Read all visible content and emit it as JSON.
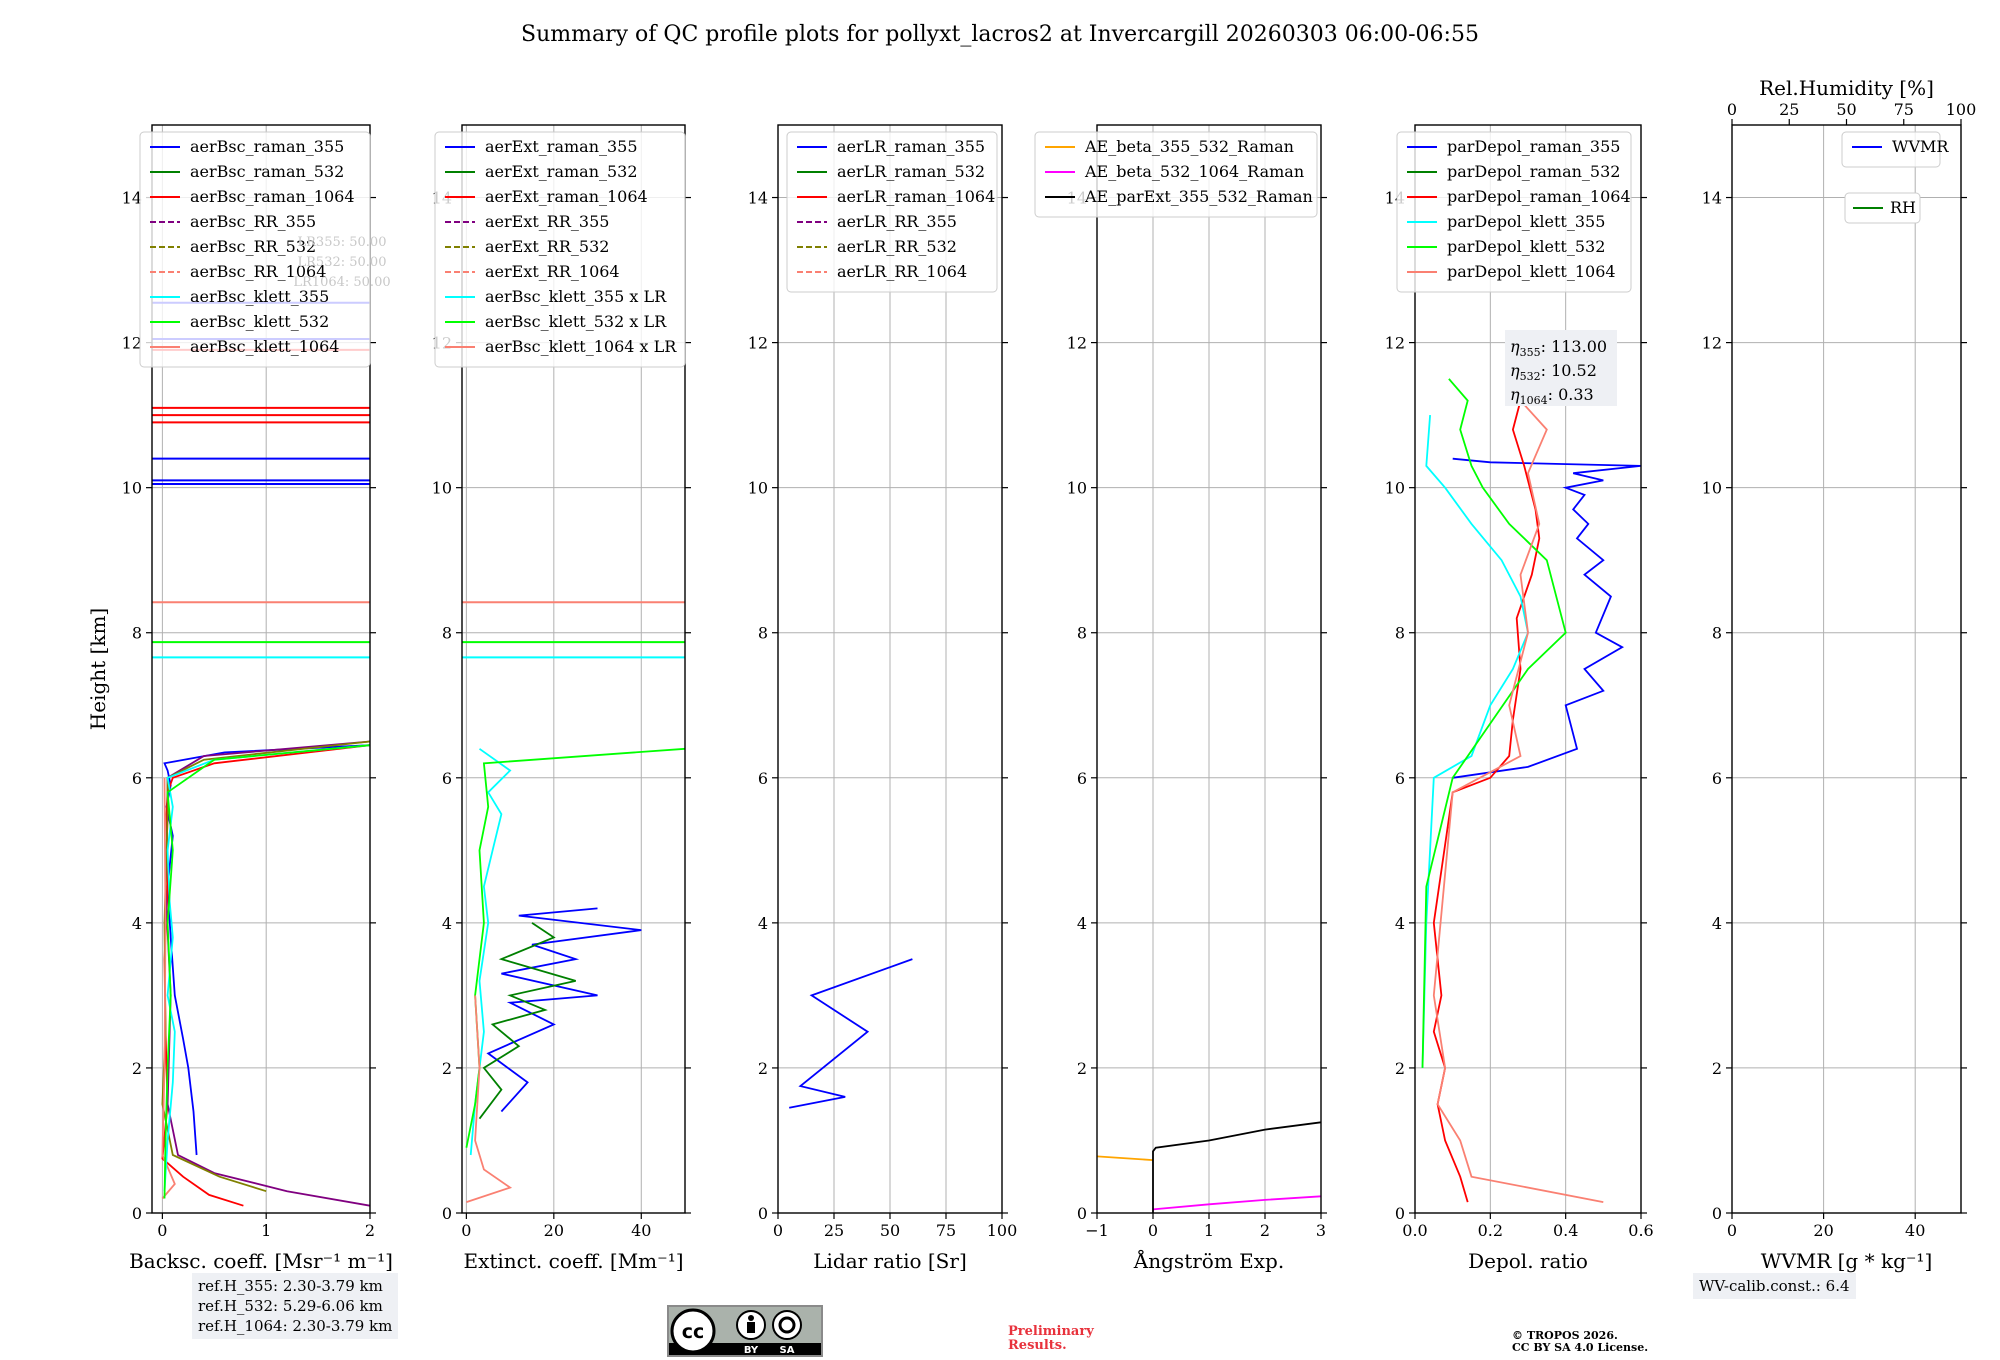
{
  "title": "Summary of QC profile plots for pollyxt_lacros2 at Invercargill 20260303 06:00-06:55",
  "ylabel": "Height [km]",
  "ref_heights": [
    "ref.H_355: 2.30-3.79 km",
    "ref.H_532: 5.29-6.06 km",
    "ref.H_1064: 2.30-3.79 km"
  ],
  "wv_calib": "WV-calib.const.: 6.4",
  "cc_license": {
    "cc": "cc",
    "by": "BY",
    "sa": "SA"
  },
  "preliminary": [
    "Preliminary",
    "Results."
  ],
  "copyright": [
    "© TROPOS 2026.",
    "CC BY SA 4.0 License."
  ],
  "colors": {
    "raman_355": "#0000ff",
    "raman_532": "#008000",
    "raman_1064": "#ff0000",
    "rr_355": "#800080",
    "rr_532": "#808000",
    "rr_1064": "#fa8072",
    "klett_355": "#00ffff",
    "klett_532": "#00ff00",
    "klett_1064": "#fa8072",
    "ae_beta_355_532": "#ffa500",
    "ae_beta_532_1064": "#ff00ff",
    "ae_parext": "#000000",
    "rh": "#008000"
  },
  "chart_data": [
    {
      "type": "line",
      "id": "bsc",
      "xlabel": "Backsc. coeff. [Msr⁻¹ m⁻¹]",
      "ylabel": "Height [km]",
      "xlim": [
        -0.1,
        2
      ],
      "ylim": [
        0,
        15
      ],
      "xticks": [
        "0",
        "1",
        "2"
      ],
      "xtick_values": [
        0,
        1,
        2
      ],
      "yticks": [
        "0",
        "2",
        "4",
        "6",
        "8",
        "10",
        "12",
        "14"
      ],
      "legend": [
        "aerBsc_raman_355",
        "aerBsc_raman_532",
        "aerBsc_raman_1064",
        "aerBsc_RR_355",
        "aerBsc_RR_532",
        "aerBsc_RR_1064",
        "aerBsc_klett_355",
        "aerBsc_klett_532",
        "aerBsc_klett_1064"
      ],
      "overlay_text": [
        "LR355: 50.00",
        "LR532: 50.00",
        "LR1064: 50.00"
      ],
      "series": [
        {
          "name": "aerBsc_raman_355",
          "color": "#0000ff",
          "x": [
            0.33,
            0.3,
            0.25,
            0.2,
            0.12,
            0.08,
            0.05,
            0.1,
            0.04,
            0.08,
            0.05,
            0.02,
            0.6,
            2.0
          ],
          "y": [
            0.8,
            1.4,
            2.0,
            2.4,
            3.0,
            3.8,
            4.5,
            5.2,
            5.6,
            5.9,
            6.1,
            6.2,
            6.35,
            6.45
          ]
        },
        {
          "name": "aerBsc_raman_1064",
          "color": "#ff0000",
          "x": [
            0.78,
            0.45,
            0.2,
            0.0,
            0.05,
            0.03,
            0.02,
            0.05,
            0.04,
            0.05,
            0.1,
            0.5,
            2.0
          ],
          "y": [
            0.1,
            0.25,
            0.5,
            0.75,
            1.5,
            2.5,
            3.5,
            4.5,
            5.5,
            5.8,
            6.0,
            6.2,
            6.45
          ]
        },
        {
          "name": "aerBsc_RR_355",
          "color": "#800080",
          "x": [
            2.0,
            1.2,
            0.5,
            0.15,
            0.05,
            0.08,
            0.03,
            0.05,
            0.05,
            0.4,
            2.0
          ],
          "y": [
            0.1,
            0.3,
            0.55,
            0.8,
            1.5,
            3.0,
            4.5,
            5.5,
            6.0,
            6.3,
            6.5
          ]
        },
        {
          "name": "aerBsc_RR_532",
          "color": "#808000",
          "x": [
            1.0,
            0.55,
            0.1,
            0.0,
            0.03,
            0.02,
            0.05,
            0.05,
            0.4,
            2.0
          ],
          "y": [
            0.3,
            0.5,
            0.8,
            1.5,
            2.5,
            4.0,
            5.5,
            6.0,
            6.25,
            6.5
          ]
        },
        {
          "name": "aerBsc_RR_1064",
          "color": "#fa8072",
          "x": [
            0.0,
            0.12,
            0.0,
            0.02,
            0.03,
            0.02
          ],
          "y": [
            0.2,
            0.4,
            0.8,
            2.0,
            4.0,
            6.0
          ]
        },
        {
          "name": "aerBsc_klett_355",
          "color": "#00ffff",
          "x": [
            0.02,
            0.05,
            0.1,
            0.12,
            0.05,
            0.1,
            0.07,
            0.05,
            0.1,
            0.05,
            0.5,
            2.0
          ],
          "y": [
            0.3,
            1.0,
            1.8,
            2.5,
            3.0,
            3.8,
            4.3,
            5.0,
            5.6,
            6.0,
            6.25,
            6.45
          ]
        },
        {
          "name": "aerBsc_klett_532",
          "color": "#00ff00",
          "x": [
            0.02,
            0.03,
            0.05,
            0.08,
            0.05,
            0.1,
            0.05,
            0.5,
            2.0
          ],
          "y": [
            0.2,
            1.0,
            2.0,
            3.0,
            4.0,
            5.0,
            5.8,
            6.25,
            6.45
          ]
        }
      ],
      "hlines": [
        {
          "color": "#fa8072",
          "y": 8.42
        },
        {
          "color": "#00ff00",
          "y": 7.87
        },
        {
          "color": "#00ffff",
          "y": 7.66
        },
        {
          "color": "#0000ff",
          "y": 10.05
        },
        {
          "color": "#0000ff",
          "y": 10.1
        },
        {
          "color": "#ff0000",
          "y": 10.9
        },
        {
          "color": "#ff0000",
          "y": 11.0
        },
        {
          "color": "#ff0000",
          "y": 11.1
        },
        {
          "color": "#0000ff",
          "y": 10.4
        },
        {
          "color": "#0000ff",
          "y": 12.55
        },
        {
          "color": "#0000ff",
          "y": 12.05
        },
        {
          "color": "#ff0000",
          "y": 11.9
        }
      ]
    },
    {
      "type": "line",
      "id": "ext",
      "xlabel": "Extinct. coeff. [Mm⁻¹]",
      "xlim": [
        -1,
        50
      ],
      "ylim": [
        0,
        15
      ],
      "xticks": [
        "0",
        "20",
        "40"
      ],
      "xtick_values": [
        0,
        20,
        40
      ],
      "yticks": [
        "0",
        "2",
        "4",
        "6",
        "8",
        "10",
        "12",
        "14"
      ],
      "legend": [
        "aerExt_raman_355",
        "aerExt_raman_532",
        "aerExt_raman_1064",
        "aerExt_RR_355",
        "aerExt_RR_532",
        "aerExt_RR_1064",
        "aerBsc_klett_355 x LR",
        "aerBsc_klett_532 x LR",
        "aerBsc_klett_1064 x LR"
      ],
      "series": [
        {
          "name": "aerExt_raman_355",
          "color": "#0000ff",
          "x": [
            8,
            14,
            5,
            20,
            10,
            30,
            8,
            25,
            15,
            40,
            12,
            30
          ],
          "y": [
            1.4,
            1.8,
            2.2,
            2.6,
            2.9,
            3.0,
            3.3,
            3.5,
            3.7,
            3.9,
            4.1,
            4.2
          ]
        },
        {
          "name": "aerExt_raman_532",
          "color": "#008000",
          "x": [
            3,
            8,
            4,
            12,
            6,
            18,
            10,
            25,
            8,
            20,
            15
          ],
          "y": [
            1.3,
            1.7,
            2.0,
            2.3,
            2.6,
            2.8,
            3.0,
            3.2,
            3.5,
            3.8,
            4.0
          ]
        },
        {
          "name": "aerBsc_klett_355 x LR",
          "color": "#00ffff",
          "x": [
            1,
            2,
            4,
            3,
            5,
            4,
            6,
            8,
            5,
            10,
            3
          ],
          "y": [
            0.8,
            1.5,
            2.5,
            3.2,
            4.0,
            4.5,
            5.0,
            5.5,
            5.8,
            6.1,
            6.4
          ]
        },
        {
          "name": "aerBsc_klett_532 x LR",
          "color": "#00ff00",
          "x": [
            0,
            2,
            3,
            2,
            4,
            3,
            5,
            4,
            50
          ],
          "y": [
            0.9,
            1.5,
            2.0,
            3.0,
            4.0,
            5.0,
            5.6,
            6.2,
            6.4
          ]
        },
        {
          "name": "aerBsc_klett_1064 x LR",
          "color": "#fa8072",
          "x": [
            0,
            10,
            4,
            2,
            3,
            2
          ],
          "y": [
            0.15,
            0.35,
            0.6,
            1.0,
            2.0,
            3.0
          ]
        }
      ],
      "hlines": [
        {
          "color": "#fa8072",
          "y": 8.42
        },
        {
          "color": "#00ff00",
          "y": 7.87
        },
        {
          "color": "#00ffff",
          "y": 7.66
        }
      ]
    },
    {
      "type": "line",
      "id": "lr",
      "xlabel": "Lidar ratio [Sr]",
      "xlim": [
        0,
        100
      ],
      "ylim": [
        0,
        15
      ],
      "xticks": [
        "0",
        "25",
        "50",
        "75",
        "100"
      ],
      "xtick_values": [
        0,
        25,
        50,
        75,
        100
      ],
      "yticks": [
        "0",
        "2",
        "4",
        "6",
        "8",
        "10",
        "12",
        "14"
      ],
      "legend": [
        "aerLR_raman_355",
        "aerLR_raman_532",
        "aerLR_raman_1064",
        "aerLR_RR_355",
        "aerLR_RR_532",
        "aerLR_RR_1064"
      ],
      "series": [
        {
          "name": "aerLR_raman_355",
          "color": "#0000ff",
          "x": [
            5,
            30,
            10,
            40,
            15,
            60
          ],
          "y": [
            1.45,
            1.6,
            1.75,
            2.5,
            3.0,
            3.5
          ]
        }
      ]
    },
    {
      "type": "line",
      "id": "ae",
      "xlabel": "Ångström Exp.",
      "xlim": [
        -1,
        3
      ],
      "ylim": [
        0,
        15
      ],
      "xticks": [
        "−1",
        "0",
        "1",
        "2",
        "3"
      ],
      "xtick_values": [
        -1,
        0,
        1,
        2,
        3
      ],
      "yticks": [
        "0",
        "2",
        "4",
        "6",
        "8",
        "10",
        "12",
        "14"
      ],
      "legend": [
        "AE_beta_355_532_Raman",
        "AE_beta_532_1064_Raman",
        "AE_parExt_355_532_Raman"
      ],
      "series": [
        {
          "name": "AE_beta_355_532_Raman",
          "color": "#ffa500",
          "x": [
            -1,
            0.0
          ],
          "y": [
            0.78,
            0.73
          ]
        },
        {
          "name": "AE_beta_532_1064_Raman",
          "color": "#ff00ff",
          "x": [
            0,
            1,
            2,
            3
          ],
          "y": [
            0.05,
            0.12,
            0.18,
            0.23
          ]
        },
        {
          "name": "AE_parExt_355_532_Raman",
          "color": "#000000",
          "x": [
            0,
            0,
            0.05,
            1,
            2,
            3
          ],
          "y": [
            0.0,
            0.85,
            0.9,
            1.0,
            1.15,
            1.25
          ]
        }
      ]
    },
    {
      "type": "line",
      "id": "depol",
      "xlabel": "Depol. ratio",
      "xlim": [
        0,
        0.6
      ],
      "ylim": [
        0,
        15
      ],
      "xticks": [
        "0.0",
        "0.2",
        "0.4",
        "0.6"
      ],
      "xtick_values": [
        0,
        0.2,
        0.4,
        0.6
      ],
      "yticks": [
        "0",
        "2",
        "4",
        "6",
        "8",
        "10",
        "12",
        "14"
      ],
      "legend": [
        "parDepol_raman_355",
        "parDepol_raman_532",
        "parDepol_raman_1064",
        "parDepol_klett_355",
        "parDepol_klett_532",
        "parDepol_klett_1064"
      ],
      "annotation": [
        {
          "sub": "355",
          "value": "113.00"
        },
        {
          "sub": "532",
          "value": "10.52"
        },
        {
          "sub": "1064",
          "value": "0.33"
        }
      ],
      "series": [
        {
          "name": "parDepol_raman_355",
          "color": "#0000ff",
          "x": [
            0.1,
            0.3,
            0.43,
            0.4,
            0.5,
            0.45,
            0.55,
            0.48,
            0.52,
            0.45,
            0.5,
            0.43,
            0.46,
            0.42,
            0.45,
            0.4,
            0.5,
            0.42,
            0.6,
            0.2,
            0.1
          ],
          "y": [
            6.0,
            6.15,
            6.4,
            7.0,
            7.2,
            7.5,
            7.8,
            8.0,
            8.5,
            8.8,
            9.0,
            9.3,
            9.5,
            9.7,
            9.9,
            10.0,
            10.1,
            10.2,
            10.3,
            10.35,
            10.4
          ]
        },
        {
          "name": "parDepol_raman_1064",
          "color": "#ff0000",
          "x": [
            0.14,
            0.12,
            0.08,
            0.06,
            0.08,
            0.05,
            0.07,
            0.05,
            0.1,
            0.2,
            0.25,
            0.26,
            0.28,
            0.27,
            0.31,
            0.33,
            0.32,
            0.29,
            0.26,
            0.28,
            0.3
          ],
          "y": [
            0.15,
            0.5,
            1.0,
            1.5,
            2.0,
            2.5,
            3.0,
            4.0,
            5.8,
            6.0,
            6.3,
            6.8,
            7.5,
            8.2,
            8.8,
            9.3,
            9.7,
            10.3,
            10.8,
            11.2,
            11.5
          ]
        },
        {
          "name": "parDepol_klett_355",
          "color": "#00ffff",
          "x": [
            0.02,
            0.03,
            0.05,
            0.15,
            0.2,
            0.26,
            0.3,
            0.28,
            0.23,
            0.15,
            0.08,
            0.03,
            0.04
          ],
          "y": [
            2.0,
            4.0,
            6.0,
            6.3,
            7.0,
            7.5,
            8.0,
            8.5,
            9.0,
            9.5,
            10.0,
            10.3,
            11.0
          ]
        },
        {
          "name": "parDepol_klett_532",
          "color": "#00ff00",
          "x": [
            0.02,
            0.03,
            0.1,
            0.3,
            0.4,
            0.35,
            0.25,
            0.18,
            0.15,
            0.12,
            0.14,
            0.09
          ],
          "y": [
            2.0,
            4.5,
            6.0,
            7.5,
            8.0,
            9.0,
            9.5,
            10.0,
            10.3,
            10.8,
            11.2,
            11.5
          ]
        },
        {
          "name": "parDepol_klett_1064",
          "color": "#fa8072",
          "x": [
            0.5,
            0.15,
            0.12,
            0.06,
            0.08,
            0.05,
            0.1,
            0.28,
            0.25,
            0.3,
            0.28,
            0.33,
            0.3,
            0.35,
            0.28,
            0.32
          ],
          "y": [
            0.15,
            0.5,
            1.0,
            1.5,
            2.0,
            3.0,
            5.8,
            6.3,
            7.0,
            8.0,
            8.8,
            9.5,
            10.2,
            10.8,
            11.2,
            11.6
          ]
        }
      ]
    },
    {
      "type": "line",
      "id": "wv",
      "xlabel": "WVMR [g * kg⁻¹]",
      "x2label": "Rel.Humidity [%]",
      "xlim": [
        0,
        50
      ],
      "ylim": [
        0,
        15
      ],
      "x2lim": [
        0,
        100
      ],
      "xticks": [
        "0",
        "20",
        "40"
      ],
      "xtick_values": [
        0,
        20,
        40
      ],
      "x2ticks": [
        "0",
        "25",
        "50",
        "75",
        "100"
      ],
      "x2tick_values": [
        0,
        25,
        50,
        75,
        100
      ],
      "yticks": [
        "0",
        "2",
        "4",
        "6",
        "8",
        "10",
        "12",
        "14"
      ],
      "legend": [
        "WVMR"
      ],
      "legend2": [
        "RH"
      ],
      "series": []
    }
  ]
}
